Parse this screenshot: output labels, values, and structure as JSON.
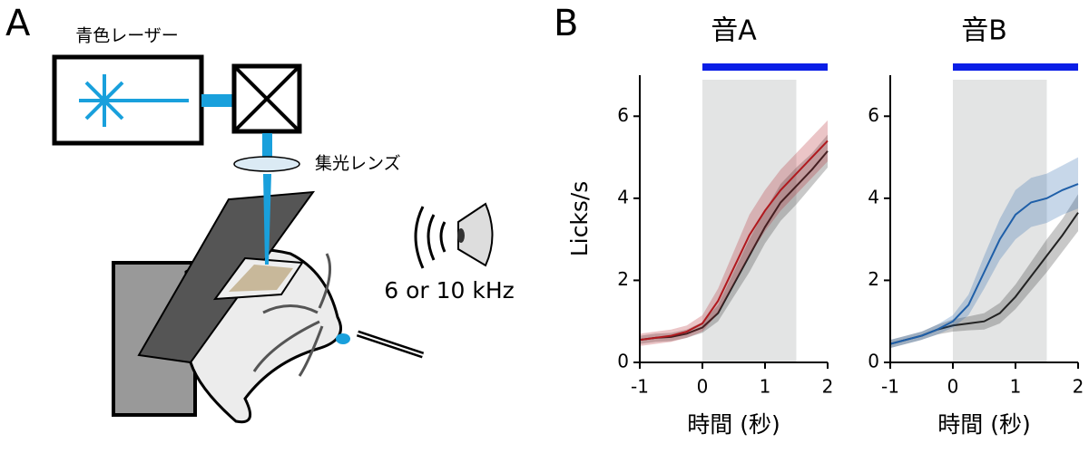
{
  "panel_labels": [
    "A",
    "B"
  ],
  "diagram": {
    "laser": "青色レーザー",
    "lens": "集光レンズ",
    "sound": "6 or 10 kHz"
  },
  "chart_data": [
    {
      "type": "line",
      "title": "音A",
      "ylabel": "Licks/s",
      "xlabel": "時間 (秒)",
      "xlim": [
        -1,
        2
      ],
      "ylim": [
        0,
        7
      ],
      "xticks": [
        -1,
        0,
        1,
        2
      ],
      "yticks": [
        0,
        2,
        4,
        6
      ],
      "shade": [
        0,
        1.5
      ],
      "stimulus_bar": [
        0,
        2
      ],
      "stimulus_color": "#0a1ee6",
      "x": [
        -1,
        -0.75,
        -0.5,
        -0.25,
        0,
        0.25,
        0.5,
        0.75,
        1,
        1.25,
        1.5,
        1.75,
        2
      ],
      "series": [
        {
          "color": "#222222",
          "values": [
            0.55,
            0.6,
            0.62,
            0.7,
            0.85,
            1.2,
            1.9,
            2.6,
            3.3,
            3.9,
            4.3,
            4.7,
            5.15
          ],
          "lower": [
            0.45,
            0.5,
            0.52,
            0.6,
            0.72,
            1.0,
            1.6,
            2.2,
            2.9,
            3.45,
            3.85,
            4.3,
            4.75
          ],
          "upper": [
            0.65,
            0.7,
            0.72,
            0.8,
            0.98,
            1.4,
            2.2,
            3.0,
            3.7,
            4.35,
            4.75,
            5.1,
            5.55
          ]
        },
        {
          "color": "#b0191e",
          "values": [
            0.55,
            0.6,
            0.65,
            0.75,
            0.95,
            1.5,
            2.3,
            3.1,
            3.7,
            4.2,
            4.6,
            5.0,
            5.4
          ],
          "lower": [
            0.4,
            0.45,
            0.5,
            0.6,
            0.75,
            1.2,
            1.9,
            2.6,
            3.2,
            3.7,
            4.1,
            4.5,
            4.9
          ],
          "upper": [
            0.7,
            0.75,
            0.8,
            0.9,
            1.15,
            1.8,
            2.7,
            3.6,
            4.2,
            4.7,
            5.1,
            5.5,
            5.9
          ]
        }
      ]
    },
    {
      "type": "line",
      "title": "音B",
      "xlabel": "時間 (秒)",
      "xlim": [
        -1,
        2
      ],
      "ylim": [
        0,
        7
      ],
      "xticks": [
        -1,
        0,
        1,
        2
      ],
      "yticks": [
        0,
        2,
        4,
        6
      ],
      "shade": [
        0,
        1.5
      ],
      "stimulus_bar": [
        0,
        2
      ],
      "stimulus_color": "#0a1ee6",
      "x": [
        -1,
        -0.75,
        -0.5,
        -0.25,
        0,
        0.25,
        0.5,
        0.75,
        1,
        1.25,
        1.5,
        1.75,
        2
      ],
      "series": [
        {
          "color": "#222222",
          "values": [
            0.45,
            0.55,
            0.65,
            0.8,
            0.9,
            0.95,
            1.0,
            1.2,
            1.6,
            2.1,
            2.6,
            3.1,
            3.65
          ],
          "lower": [
            0.35,
            0.45,
            0.55,
            0.68,
            0.75,
            0.78,
            0.8,
            0.95,
            1.3,
            1.75,
            2.2,
            2.7,
            3.2
          ],
          "upper": [
            0.55,
            0.65,
            0.75,
            0.92,
            1.05,
            1.12,
            1.2,
            1.45,
            1.9,
            2.45,
            3.0,
            3.5,
            4.1
          ]
        },
        {
          "color": "#1f5fa8",
          "values": [
            0.45,
            0.55,
            0.65,
            0.8,
            1.0,
            1.4,
            2.2,
            3.0,
            3.6,
            3.9,
            4.0,
            4.2,
            4.35
          ],
          "lower": [
            0.35,
            0.45,
            0.55,
            0.68,
            0.85,
            1.15,
            1.8,
            2.5,
            3.0,
            3.3,
            3.4,
            3.6,
            3.75
          ],
          "upper": [
            0.55,
            0.65,
            0.75,
            0.92,
            1.15,
            1.65,
            2.6,
            3.5,
            4.2,
            4.5,
            4.6,
            4.8,
            5.0
          ]
        }
      ]
    }
  ]
}
